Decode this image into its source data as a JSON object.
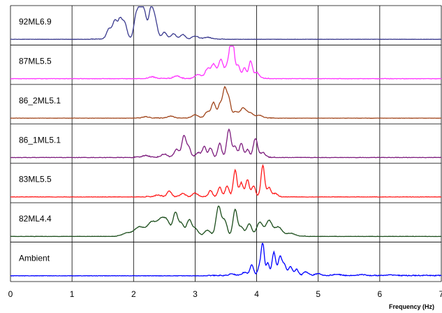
{
  "chart_data": {
    "type": "line",
    "title": "",
    "xlabel": "Frequency (Hz)",
    "ylabel": "",
    "xlim": [
      0,
      7
    ],
    "xticks": [
      "0",
      "1",
      "2",
      "3",
      "4",
      "5",
      "6",
      "7"
    ],
    "grid": true,
    "legend": "none",
    "series": [
      {
        "name": "92ML6.9",
        "color": "#3b3b8f",
        "peaks": [
          [
            1.6,
            0.32,
            0.04
          ],
          [
            1.7,
            0.6,
            0.04
          ],
          [
            1.78,
            0.5,
            0.03
          ],
          [
            1.85,
            0.55,
            0.04
          ],
          [
            2.05,
            0.85,
            0.04
          ],
          [
            2.12,
            1.0,
            0.03
          ],
          [
            2.18,
            0.75,
            0.03
          ],
          [
            2.28,
            0.92,
            0.04
          ],
          [
            2.35,
            0.55,
            0.04
          ],
          [
            2.5,
            0.22,
            0.04
          ],
          [
            2.65,
            0.18,
            0.04
          ],
          [
            2.8,
            0.15,
            0.04
          ],
          [
            3.0,
            0.1,
            0.05
          ],
          [
            3.2,
            0.06,
            0.06
          ]
        ],
        "base": [
          1.3,
          3.5
        ],
        "noise": 0.02
      },
      {
        "name": "87ML5.5",
        "color": "#ff33ff",
        "peaks": [
          [
            2.3,
            0.05,
            0.05
          ],
          [
            2.7,
            0.08,
            0.05
          ],
          [
            3.05,
            0.12,
            0.05
          ],
          [
            3.2,
            0.3,
            0.04
          ],
          [
            3.3,
            0.45,
            0.04
          ],
          [
            3.42,
            0.6,
            0.04
          ],
          [
            3.52,
            0.35,
            0.03
          ],
          [
            3.58,
            0.95,
            0.03
          ],
          [
            3.62,
            0.75,
            0.03
          ],
          [
            3.7,
            0.4,
            0.03
          ],
          [
            3.8,
            0.35,
            0.03
          ],
          [
            3.9,
            0.55,
            0.03
          ],
          [
            4.0,
            0.2,
            0.04
          ]
        ],
        "base": [
          2.2,
          4.2
        ],
        "noise": 0.03
      },
      {
        "name": "86_2ML5.1",
        "color": "#a0451b",
        "peaks": [
          [
            2.2,
            0.04,
            0.05
          ],
          [
            2.6,
            0.06,
            0.05
          ],
          [
            3.0,
            0.1,
            0.05
          ],
          [
            3.2,
            0.2,
            0.04
          ],
          [
            3.3,
            0.5,
            0.035
          ],
          [
            3.4,
            0.4,
            0.03
          ],
          [
            3.48,
            0.95,
            0.035
          ],
          [
            3.55,
            0.55,
            0.03
          ],
          [
            3.65,
            0.2,
            0.04
          ],
          [
            3.78,
            0.32,
            0.05
          ],
          [
            3.9,
            0.15,
            0.05
          ],
          [
            4.05,
            0.08,
            0.05
          ]
        ],
        "base": [
          2.0,
          4.3
        ],
        "noise": 0.02
      },
      {
        "name": "86_1ML5.1",
        "color": "#7d1c7d",
        "peaks": [
          [
            2.2,
            0.06,
            0.05
          ],
          [
            2.5,
            0.1,
            0.05
          ],
          [
            2.7,
            0.25,
            0.04
          ],
          [
            2.82,
            0.7,
            0.035
          ],
          [
            2.9,
            0.3,
            0.03
          ],
          [
            3.05,
            0.15,
            0.04
          ],
          [
            3.15,
            0.35,
            0.03
          ],
          [
            3.25,
            0.3,
            0.03
          ],
          [
            3.4,
            0.45,
            0.03
          ],
          [
            3.55,
            0.9,
            0.035
          ],
          [
            3.65,
            0.35,
            0.03
          ],
          [
            3.75,
            0.45,
            0.03
          ],
          [
            3.85,
            0.25,
            0.03
          ],
          [
            3.98,
            0.6,
            0.035
          ],
          [
            4.1,
            0.15,
            0.04
          ]
        ],
        "base": [
          2.0,
          4.3
        ],
        "noise": 0.03
      },
      {
        "name": "83ML5.5",
        "color": "#ff1a1a",
        "peaks": [
          [
            2.4,
            0.05,
            0.05
          ],
          [
            2.58,
            0.18,
            0.035
          ],
          [
            2.8,
            0.1,
            0.04
          ],
          [
            3.0,
            0.12,
            0.04
          ],
          [
            3.25,
            0.2,
            0.03
          ],
          [
            3.4,
            0.3,
            0.03
          ],
          [
            3.52,
            0.35,
            0.03
          ],
          [
            3.65,
            0.85,
            0.03
          ],
          [
            3.75,
            0.45,
            0.03
          ],
          [
            3.85,
            0.55,
            0.03
          ],
          [
            3.95,
            0.35,
            0.03
          ],
          [
            4.1,
            1.0,
            0.03
          ],
          [
            4.2,
            0.3,
            0.03
          ],
          [
            4.3,
            0.1,
            0.04
          ]
        ],
        "base": [
          2.2,
          4.4
        ],
        "noise": 0.03
      },
      {
        "name": "82ML4.4",
        "color": "#1b4d1b",
        "peaks": [
          [
            1.9,
            0.1,
            0.08
          ],
          [
            2.1,
            0.3,
            0.08
          ],
          [
            2.3,
            0.45,
            0.07
          ],
          [
            2.45,
            0.5,
            0.06
          ],
          [
            2.55,
            0.4,
            0.05
          ],
          [
            2.68,
            0.75,
            0.04
          ],
          [
            2.78,
            0.4,
            0.04
          ],
          [
            2.9,
            0.5,
            0.04
          ],
          [
            3.0,
            0.25,
            0.05
          ],
          [
            3.2,
            0.2,
            0.05
          ],
          [
            3.38,
            0.95,
            0.04
          ],
          [
            3.48,
            0.5,
            0.04
          ],
          [
            3.65,
            0.85,
            0.035
          ],
          [
            3.75,
            0.3,
            0.04
          ],
          [
            3.88,
            0.4,
            0.04
          ],
          [
            4.05,
            0.45,
            0.05
          ],
          [
            4.2,
            0.5,
            0.05
          ],
          [
            4.35,
            0.3,
            0.06
          ],
          [
            4.55,
            0.1,
            0.07
          ]
        ],
        "base": [
          1.7,
          4.8
        ],
        "noise": 0.02
      },
      {
        "name": "Ambient",
        "color": "#0000ff",
        "peaks": [
          [
            3.6,
            0.05,
            0.05
          ],
          [
            3.8,
            0.1,
            0.04
          ],
          [
            3.92,
            0.35,
            0.03
          ],
          [
            4.05,
            0.3,
            0.03
          ],
          [
            4.1,
            1.0,
            0.025
          ],
          [
            4.18,
            0.4,
            0.025
          ],
          [
            4.28,
            0.75,
            0.03
          ],
          [
            4.38,
            0.6,
            0.03
          ],
          [
            4.45,
            0.35,
            0.03
          ],
          [
            4.55,
            0.3,
            0.03
          ],
          [
            4.65,
            0.2,
            0.03
          ],
          [
            4.8,
            0.12,
            0.04
          ],
          [
            5.0,
            0.06,
            0.05
          ],
          [
            5.3,
            0.04,
            0.06
          ],
          [
            5.7,
            0.03,
            0.06
          ],
          [
            6.2,
            0.02,
            0.06
          ]
        ],
        "base": [
          3.2,
          7.0
        ],
        "noise": 0.03
      }
    ]
  }
}
